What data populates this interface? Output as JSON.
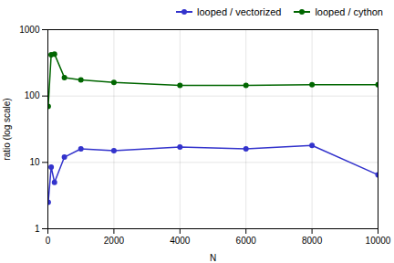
{
  "chart_data": {
    "type": "line",
    "xlabel": "N",
    "ylabel": "ratio (log scale)",
    "x": [
      10,
      100,
      200,
      500,
      1000,
      2000,
      4000,
      6000,
      8000,
      10000
    ],
    "series": [
      {
        "name": "looped / vectorized",
        "color": "#3333cc",
        "values": [
          2.5,
          8.5,
          5.0,
          12.0,
          16.0,
          15.0,
          17.0,
          16.0,
          18.0,
          6.5
        ]
      },
      {
        "name": "looped / cython",
        "color": "#006600",
        "values": [
          70,
          420,
          430,
          190,
          175,
          160,
          145,
          145,
          148,
          148
        ]
      }
    ],
    "xlim": [
      0,
      10000
    ],
    "xticks": [
      0,
      2000,
      4000,
      6000,
      8000,
      10000
    ],
    "ylim": [
      1,
      1000
    ],
    "yticks": [
      1,
      10,
      100,
      1000
    ],
    "log": "y",
    "grid": true,
    "legend": "upper right",
    "marker": "circle"
  }
}
